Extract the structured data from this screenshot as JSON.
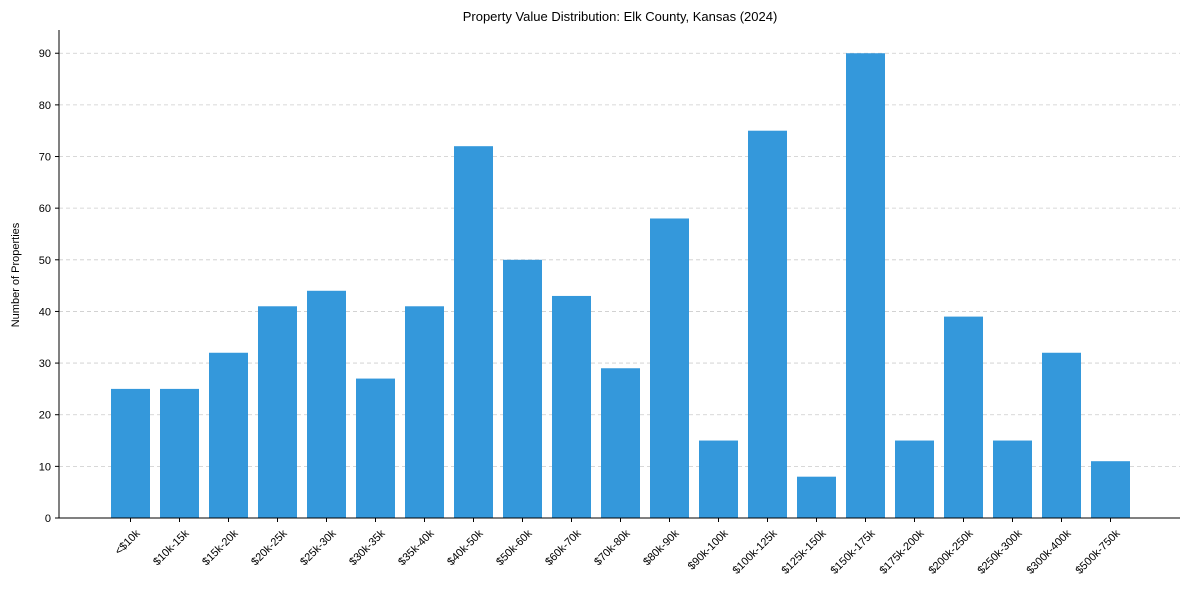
{
  "chart_data": {
    "type": "bar",
    "title": "Property Value Distribution: Elk County, Kansas (2024)",
    "xlabel": "",
    "ylabel": "Number of Properties",
    "categories": [
      "<$10k",
      "$10k-15k",
      "$15k-20k",
      "$20k-25k",
      "$25k-30k",
      "$30k-35k",
      "$35k-40k",
      "$40k-50k",
      "$50k-60k",
      "$60k-70k",
      "$70k-80k",
      "$80k-90k",
      "$90k-100k",
      "$100k-125k",
      "$125k-150k",
      "$150k-175k",
      "$175k-200k",
      "$200k-250k",
      "$250k-300k",
      "$300k-400k",
      "$500k-750k"
    ],
    "values": [
      25,
      25,
      32,
      41,
      44,
      27,
      41,
      72,
      50,
      43,
      29,
      58,
      15,
      75,
      8,
      90,
      15,
      39,
      15,
      32,
      11
    ],
    "ylim": [
      0,
      94.5
    ],
    "yticks": [
      0,
      10,
      20,
      30,
      40,
      50,
      60,
      70,
      80,
      90
    ],
    "grid": "y-dashed",
    "bar_color": "#3498db",
    "grid_color": "#cccccc"
  }
}
